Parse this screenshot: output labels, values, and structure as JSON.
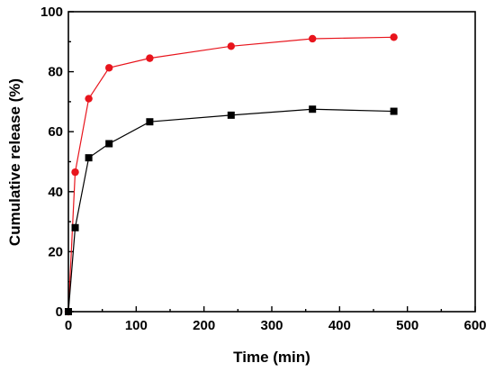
{
  "chart_data": {
    "type": "line",
    "title": "",
    "xlabel": "Time (min)",
    "ylabel": "Cumulative release (%)",
    "xlim": [
      0,
      600
    ],
    "ylim": [
      0,
      100
    ],
    "xticks": [
      0,
      100,
      200,
      300,
      400,
      500,
      600
    ],
    "yticks": [
      0,
      20,
      40,
      60,
      80,
      100
    ],
    "grid": false,
    "legend": "none",
    "series": [
      {
        "marker": "circle",
        "color": "#e8141c",
        "x": [
          0,
          10,
          30,
          60,
          120,
          240,
          360,
          480
        ],
        "y": [
          0,
          46.5,
          71,
          81.3,
          84.5,
          88.5,
          91,
          91.5
        ]
      },
      {
        "marker": "square",
        "color": "#000000",
        "x": [
          0,
          10,
          30,
          60,
          120,
          240,
          360,
          480
        ],
        "y": [
          0,
          28,
          51.3,
          56,
          63.3,
          65.5,
          67.5,
          66.8
        ]
      }
    ]
  }
}
